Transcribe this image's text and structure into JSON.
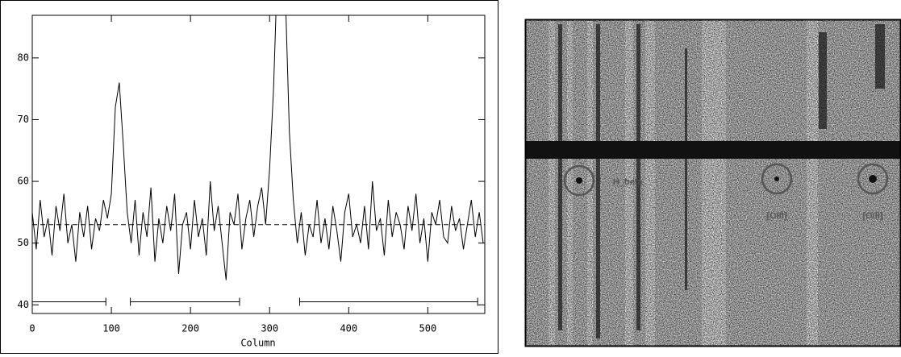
{
  "chart_data": {
    "type": "line",
    "xlabel": "Column",
    "x": [
      0,
      5,
      10,
      15,
      20,
      25,
      30,
      35,
      40,
      45,
      50,
      55,
      60,
      65,
      70,
      75,
      80,
      85,
      90,
      95,
      100,
      105,
      110,
      115,
      120,
      125,
      130,
      135,
      140,
      145,
      150,
      155,
      160,
      165,
      170,
      175,
      180,
      185,
      190,
      195,
      200,
      205,
      210,
      215,
      220,
      225,
      230,
      235,
      240,
      245,
      250,
      255,
      260,
      265,
      270,
      275,
      280,
      285,
      290,
      295,
      300,
      305,
      310,
      315,
      320,
      325,
      330,
      335,
      340,
      345,
      350,
      355,
      360,
      365,
      370,
      375,
      380,
      385,
      390,
      395,
      400,
      405,
      410,
      415,
      420,
      425,
      430,
      435,
      440,
      445,
      450,
      455,
      460,
      465,
      470,
      475,
      480,
      485,
      490,
      495,
      500,
      505,
      510,
      515,
      520,
      525,
      530,
      535,
      540,
      545,
      550,
      555,
      560,
      565,
      570
    ],
    "values": [
      55,
      49,
      57,
      51,
      54,
      48,
      56,
      52,
      58,
      50,
      53,
      47,
      55,
      51,
      56,
      49,
      54,
      52,
      57,
      54,
      58,
      72,
      76,
      66,
      55,
      50,
      57,
      48,
      55,
      51,
      59,
      47,
      54,
      50,
      56,
      52,
      58,
      45,
      53,
      55,
      49,
      57,
      51,
      54,
      48,
      60,
      52,
      56,
      50,
      44,
      55,
      53,
      58,
      49,
      54,
      57,
      51,
      56,
      59,
      53,
      62,
      75,
      95,
      98,
      90,
      68,
      57,
      50,
      55,
      48,
      53,
      51,
      57,
      50,
      54,
      49,
      56,
      52,
      47,
      55,
      58,
      51,
      53,
      50,
      56,
      49,
      60,
      52,
      54,
      48,
      57,
      51,
      55,
      53,
      49,
      56,
      52,
      58,
      50,
      54,
      47,
      55,
      53,
      57,
      51,
      50,
      56,
      52,
      54,
      49,
      53,
      57,
      51,
      55,
      50
    ],
    "color": "#000000",
    "reference_line": 53,
    "regions": [
      [
        0,
        93
      ],
      [
        124,
        262
      ],
      [
        338,
        563
      ]
    ],
    "region_level": 40.5,
    "xlim": [
      0,
      572
    ],
    "xticks": [
      0,
      100,
      200,
      300,
      400,
      500
    ],
    "ylim": [
      38.6,
      86.9
    ],
    "yticks": [
      40,
      50,
      60,
      70,
      80
    ]
  },
  "image_panel": {
    "annotations": [
      "H_beta",
      "[OIII]",
      "[OIII]"
    ]
  }
}
